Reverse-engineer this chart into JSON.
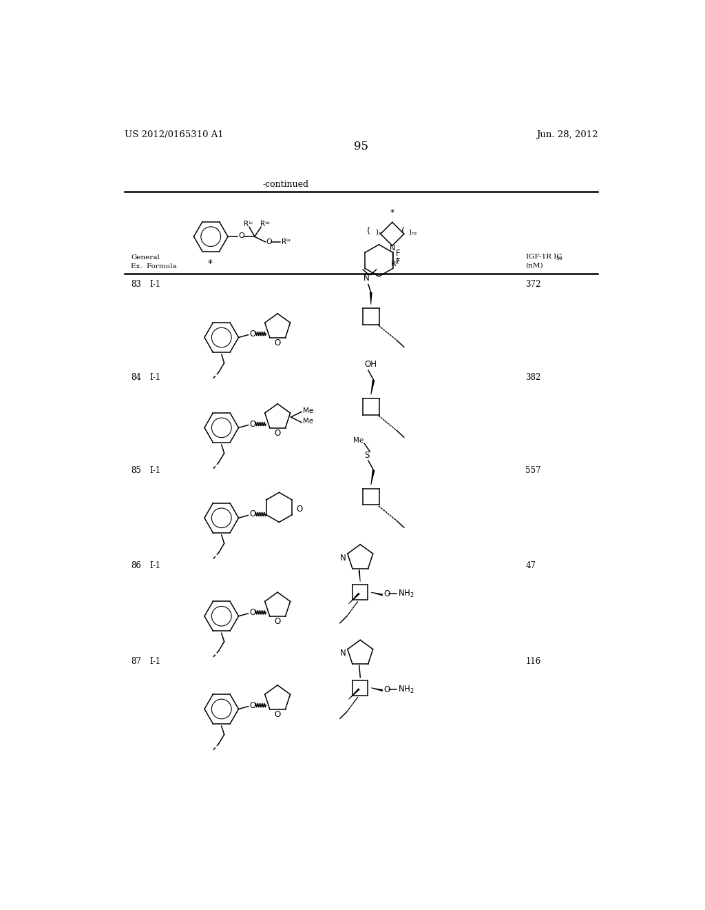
{
  "page_number": "95",
  "patent_number": "US 2012/0165310 A1",
  "date": "Jun. 28, 2012",
  "continued_label": "-continued",
  "background_color": "#ffffff",
  "text_color": "#000000",
  "rows": [
    {
      "ex": "83",
      "formula": "I-1",
      "ic50": "372"
    },
    {
      "ex": "84",
      "formula": "I-1",
      "ic50": "382"
    },
    {
      "ex": "85",
      "formula": "I-1",
      "ic50": "557"
    },
    {
      "ex": "86",
      "formula": "I-1",
      "ic50": "47"
    },
    {
      "ex": "87",
      "formula": "I-1",
      "ic50": "116"
    }
  ]
}
